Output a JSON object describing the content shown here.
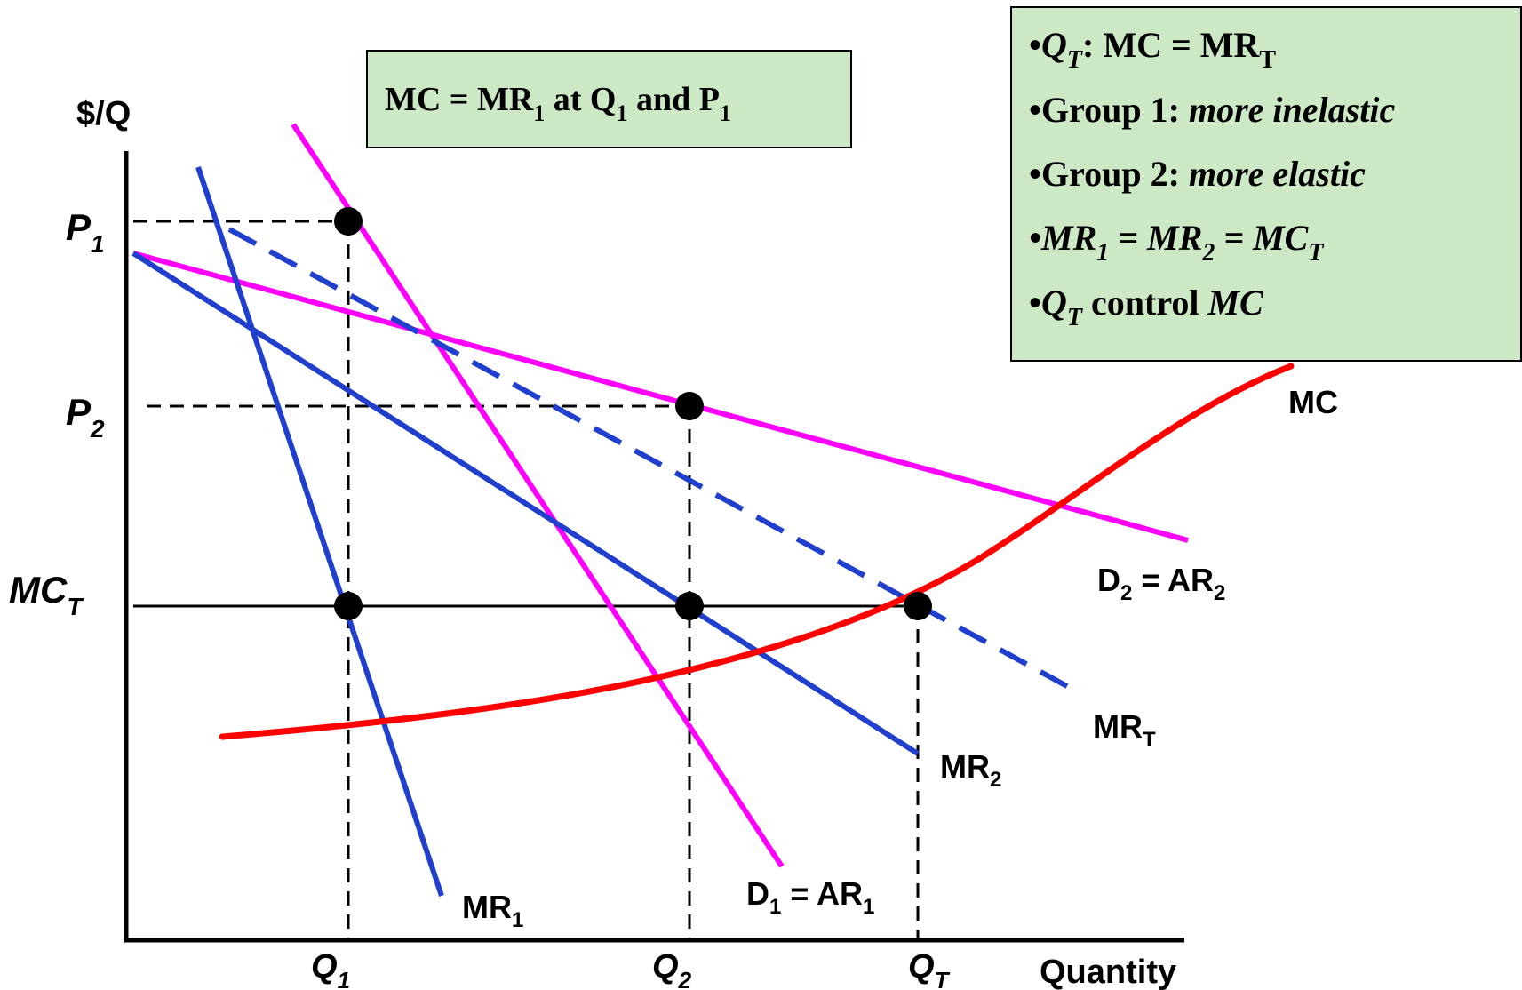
{
  "axes": {
    "y_label": "$/Q",
    "x_label": "Quantity",
    "p1": {
      "main": "P",
      "sub": "1"
    },
    "p2": {
      "main": "P",
      "sub": "2"
    },
    "mct": {
      "main": "MC",
      "sub": "T"
    },
    "q1": {
      "main": "Q",
      "sub": "1"
    },
    "q2": {
      "main": "Q",
      "sub": "2"
    },
    "qt": {
      "main": "Q",
      "sub": "T"
    }
  },
  "curves": {
    "mc": {
      "label": "MC",
      "color": "#ff0000"
    },
    "mr1": {
      "main": "MR",
      "sub": "1",
      "color": "#1f3fcc"
    },
    "mr2": {
      "main": "MR",
      "sub": "2",
      "color": "#1f3fcc"
    },
    "mrt": {
      "main": "MR",
      "sub": "T",
      "color": "#1f3fcc"
    },
    "d1": {
      "main": "D",
      "sub": "1",
      "eq": " = AR",
      "sub2": "1",
      "color": "#ff00ff"
    },
    "d2": {
      "main": "D",
      "sub": "2",
      "eq": " = AR",
      "sub2": "2",
      "color": "#ff00ff"
    }
  },
  "box_top": {
    "bg": "#cce8c4",
    "a": "MC = MR",
    "a_sub": "1",
    "b": " at Q",
    "b_sub": "1",
    "c": " and P",
    "c_sub": "1"
  },
  "box_right": {
    "bg": "#cce8c4",
    "bullet": "•",
    "l1_q": "Q",
    "l1_qsub": "T",
    "l1_rest": ": MC = MR",
    "l1_sub": "T",
    "l2_a": "Group 1:  ",
    "l2_b": "more inelastic",
    "l3_a": "Group 2: ",
    "l3_b": "more elastic",
    "l4_a": "MR",
    "l4_a_sub": "1",
    "l4_b": " = MR",
    "l4_b_sub": "2",
    "l4_c": " = MC",
    "l4_c_sub": "T",
    "l5_q": "Q",
    "l5_qsub": "T",
    "l5_b": " control ",
    "l5_c": "MC"
  }
}
